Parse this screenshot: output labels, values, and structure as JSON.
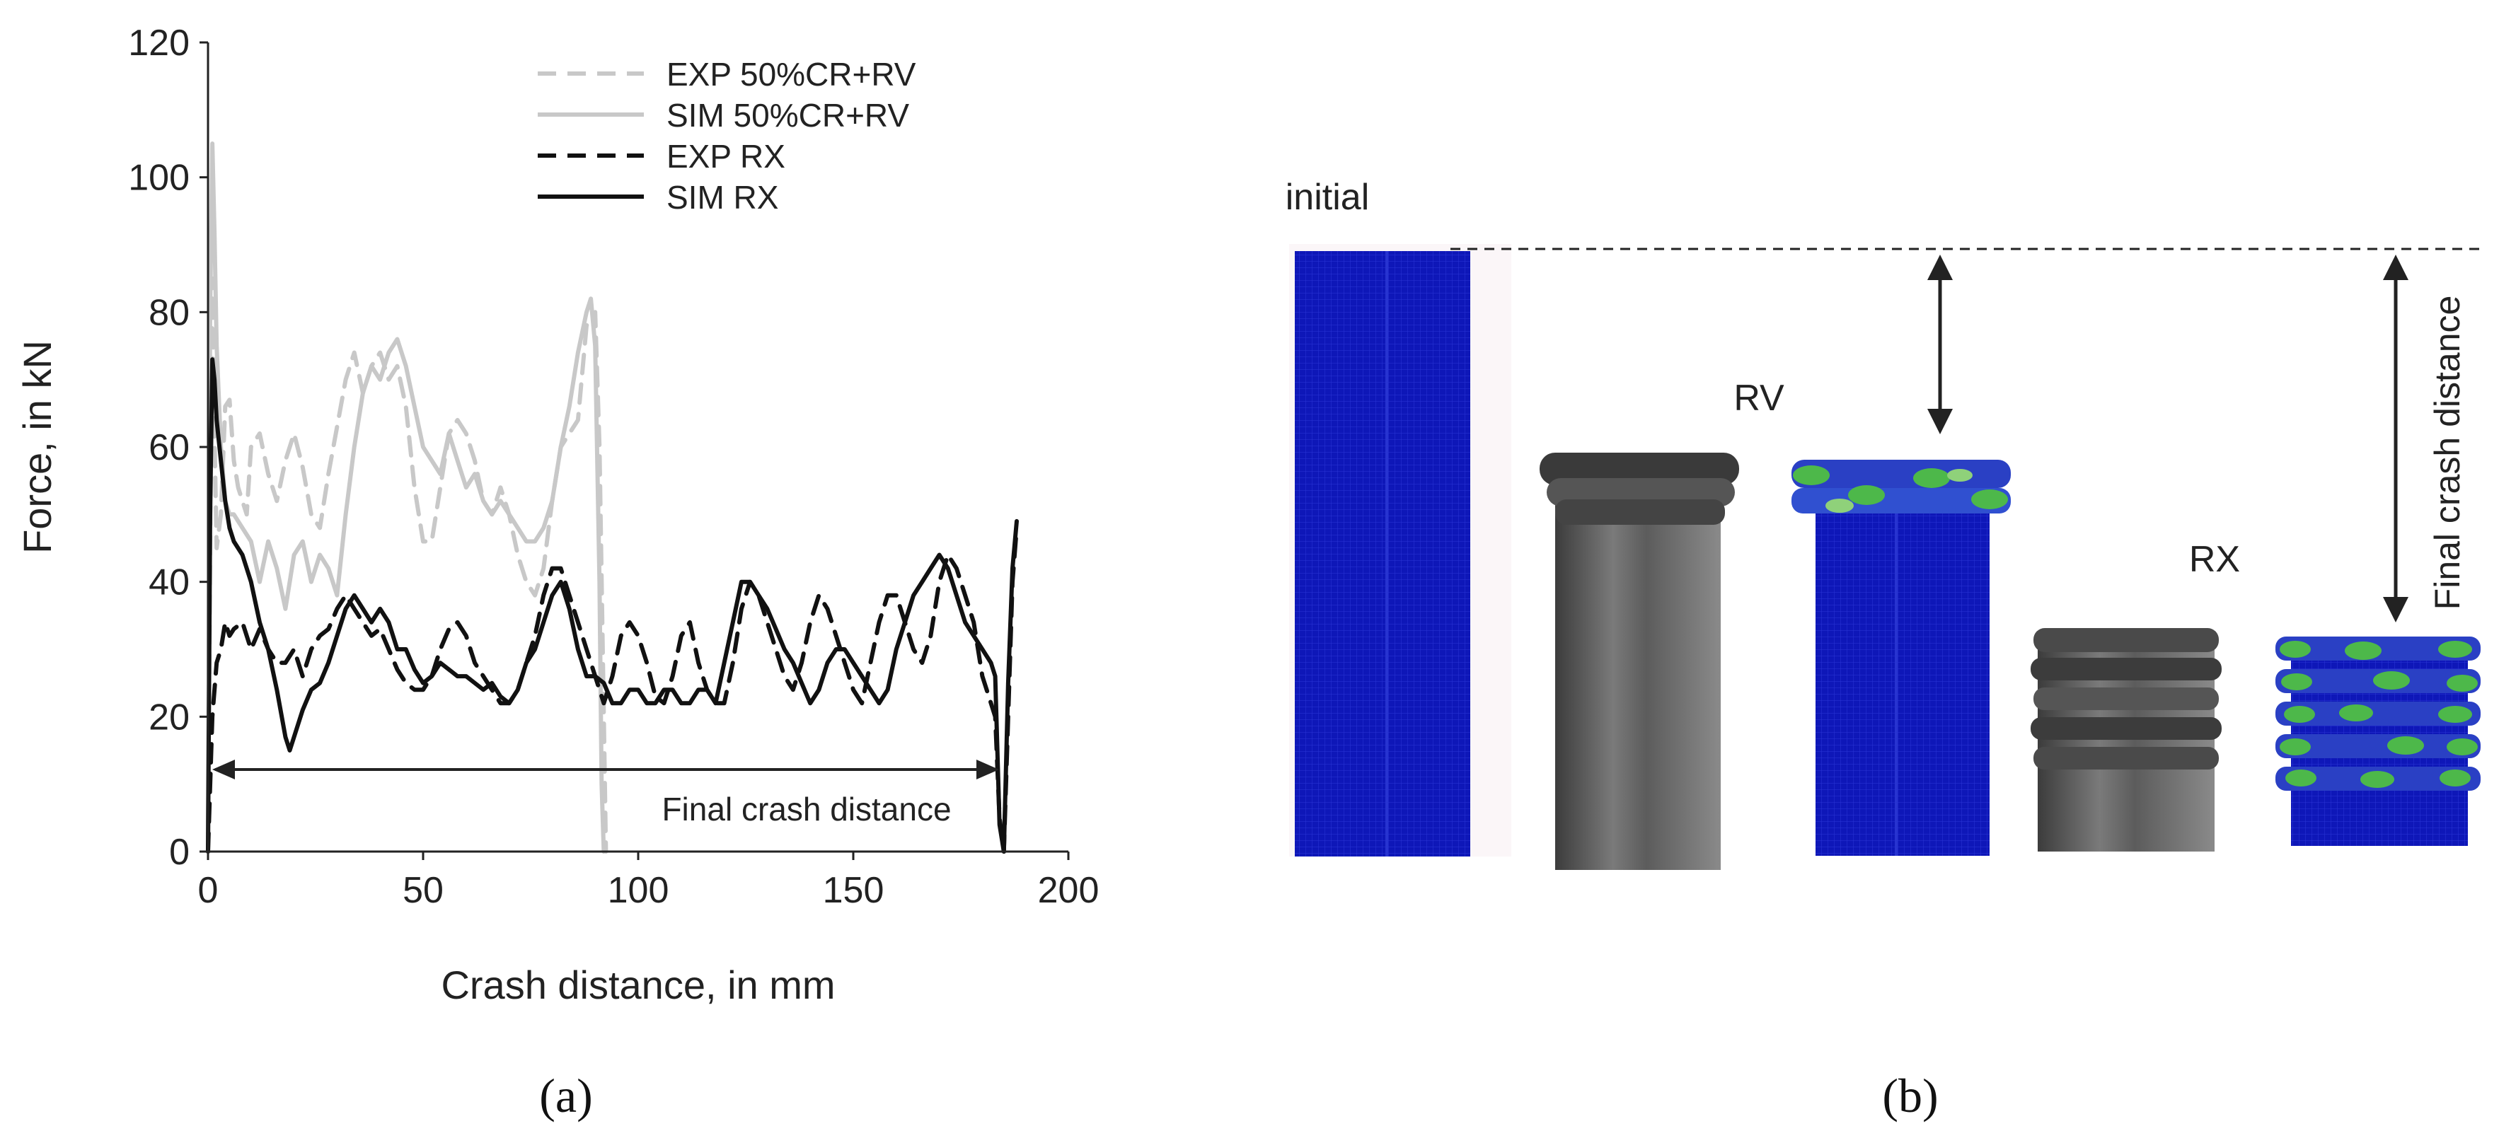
{
  "chart_data": {
    "type": "line",
    "xlabel": "Crash distance, in mm",
    "ylabel": "Force, in kN",
    "xlim": [
      0,
      200
    ],
    "ylim": [
      0,
      120
    ],
    "xticks": [
      "0",
      "50",
      "100",
      "150",
      "200"
    ],
    "yticks": [
      "0",
      "20",
      "40",
      "60",
      "80",
      "100",
      "120"
    ],
    "grid": false,
    "legend_position": "top-right",
    "annotation": "Final crash distance",
    "series": [
      {
        "name": "EXP 50%CR+RV",
        "color": "#c8c8c8",
        "dash": true,
        "points": [
          [
            0,
            0
          ],
          [
            0.5,
            45
          ],
          [
            1,
            85
          ],
          [
            1.5,
            62
          ],
          [
            2,
            45
          ],
          [
            3,
            50
          ],
          [
            4,
            66
          ],
          [
            5,
            67
          ],
          [
            6,
            58
          ],
          [
            7,
            54
          ],
          [
            8,
            52
          ],
          [
            9,
            50
          ],
          [
            10,
            60
          ],
          [
            12,
            62
          ],
          [
            14,
            56
          ],
          [
            16,
            52
          ],
          [
            18,
            58
          ],
          [
            20,
            62
          ],
          [
            22,
            57
          ],
          [
            24,
            50
          ],
          [
            26,
            48
          ],
          [
            28,
            56
          ],
          [
            30,
            63
          ],
          [
            32,
            70
          ],
          [
            34,
            74
          ],
          [
            36,
            68
          ],
          [
            38,
            72
          ],
          [
            40,
            74
          ],
          [
            42,
            70
          ],
          [
            44,
            72
          ],
          [
            46,
            66
          ],
          [
            48,
            54
          ],
          [
            50,
            46
          ],
          [
            52,
            46
          ],
          [
            54,
            54
          ],
          [
            56,
            62
          ],
          [
            58,
            64
          ],
          [
            60,
            62
          ],
          [
            62,
            58
          ],
          [
            64,
            52
          ],
          [
            66,
            50
          ],
          [
            68,
            54
          ],
          [
            70,
            50
          ],
          [
            72,
            44
          ],
          [
            74,
            40
          ],
          [
            76,
            38
          ],
          [
            78,
            42
          ],
          [
            80,
            52
          ],
          [
            82,
            60
          ],
          [
            84,
            62
          ],
          [
            86,
            64
          ],
          [
            88,
            78
          ],
          [
            90,
            80
          ],
          [
            91,
            60
          ],
          [
            92,
            20
          ],
          [
            92.5,
            0
          ]
        ]
      },
      {
        "name": "SIM 50%CR+RV",
        "color": "#c8c8c8",
        "dash": false,
        "points": [
          [
            0,
            0
          ],
          [
            0.5,
            80
          ],
          [
            1,
            105
          ],
          [
            1.5,
            92
          ],
          [
            2,
            75
          ],
          [
            3,
            60
          ],
          [
            4,
            52
          ],
          [
            5,
            50
          ],
          [
            6,
            50
          ],
          [
            8,
            48
          ],
          [
            10,
            46
          ],
          [
            12,
            40
          ],
          [
            14,
            46
          ],
          [
            16,
            42
          ],
          [
            18,
            36
          ],
          [
            20,
            44
          ],
          [
            22,
            46
          ],
          [
            24,
            40
          ],
          [
            26,
            44
          ],
          [
            28,
            42
          ],
          [
            30,
            38
          ],
          [
            32,
            50
          ],
          [
            34,
            60
          ],
          [
            36,
            68
          ],
          [
            38,
            72
          ],
          [
            40,
            70
          ],
          [
            42,
            74
          ],
          [
            44,
            76
          ],
          [
            46,
            72
          ],
          [
            48,
            66
          ],
          [
            50,
            60
          ],
          [
            52,
            58
          ],
          [
            54,
            56
          ],
          [
            56,
            62
          ],
          [
            58,
            58
          ],
          [
            60,
            54
          ],
          [
            62,
            56
          ],
          [
            64,
            52
          ],
          [
            66,
            50
          ],
          [
            68,
            52
          ],
          [
            70,
            50
          ],
          [
            72,
            48
          ],
          [
            74,
            46
          ],
          [
            76,
            46
          ],
          [
            78,
            48
          ],
          [
            80,
            52
          ],
          [
            82,
            60
          ],
          [
            84,
            66
          ],
          [
            86,
            74
          ],
          [
            88,
            80
          ],
          [
            89,
            82
          ],
          [
            90,
            75
          ],
          [
            91,
            40
          ],
          [
            91.5,
            10
          ],
          [
            92,
            0
          ]
        ]
      },
      {
        "name": "EXP RX",
        "color": "#111111",
        "dash": true,
        "points": [
          [
            0,
            0
          ],
          [
            1,
            20
          ],
          [
            2,
            28
          ],
          [
            3,
            30
          ],
          [
            4,
            34
          ],
          [
            5,
            32
          ],
          [
            6,
            33
          ],
          [
            8,
            34
          ],
          [
            10,
            30
          ],
          [
            12,
            33
          ],
          [
            14,
            30
          ],
          [
            16,
            28
          ],
          [
            18,
            28
          ],
          [
            20,
            30
          ],
          [
            22,
            26
          ],
          [
            24,
            30
          ],
          [
            26,
            32
          ],
          [
            28,
            33
          ],
          [
            30,
            36
          ],
          [
            32,
            38
          ],
          [
            34,
            36
          ],
          [
            36,
            34
          ],
          [
            38,
            32
          ],
          [
            40,
            33
          ],
          [
            42,
            30
          ],
          [
            44,
            27
          ],
          [
            46,
            25
          ],
          [
            48,
            24
          ],
          [
            50,
            24
          ],
          [
            52,
            26
          ],
          [
            54,
            30
          ],
          [
            56,
            33
          ],
          [
            58,
            34
          ],
          [
            60,
            32
          ],
          [
            62,
            28
          ],
          [
            64,
            26
          ],
          [
            66,
            24
          ],
          [
            68,
            22
          ],
          [
            70,
            22
          ],
          [
            72,
            24
          ],
          [
            74,
            28
          ],
          [
            76,
            32
          ],
          [
            78,
            38
          ],
          [
            80,
            42
          ],
          [
            82,
            42
          ],
          [
            84,
            38
          ],
          [
            86,
            34
          ],
          [
            88,
            30
          ],
          [
            90,
            26
          ],
          [
            92,
            22
          ],
          [
            94,
            26
          ],
          [
            96,
            32
          ],
          [
            98,
            34
          ],
          [
            100,
            32
          ],
          [
            102,
            28
          ],
          [
            104,
            23
          ],
          [
            106,
            22
          ],
          [
            108,
            26
          ],
          [
            110,
            32
          ],
          [
            112,
            34
          ],
          [
            114,
            28
          ],
          [
            116,
            24
          ],
          [
            118,
            22
          ],
          [
            120,
            22
          ],
          [
            122,
            28
          ],
          [
            124,
            36
          ],
          [
            126,
            40
          ],
          [
            128,
            38
          ],
          [
            130,
            34
          ],
          [
            132,
            30
          ],
          [
            134,
            26
          ],
          [
            136,
            24
          ],
          [
            138,
            28
          ],
          [
            140,
            34
          ],
          [
            142,
            38
          ],
          [
            144,
            36
          ],
          [
            146,
            32
          ],
          [
            148,
            28
          ],
          [
            150,
            24
          ],
          [
            152,
            22
          ],
          [
            154,
            28
          ],
          [
            156,
            34
          ],
          [
            158,
            38
          ],
          [
            160,
            38
          ],
          [
            162,
            34
          ],
          [
            164,
            30
          ],
          [
            166,
            28
          ],
          [
            168,
            32
          ],
          [
            170,
            40
          ],
          [
            172,
            44
          ],
          [
            174,
            42
          ],
          [
            176,
            38
          ],
          [
            178,
            34
          ],
          [
            180,
            26
          ],
          [
            182,
            22
          ],
          [
            183,
            20
          ],
          [
            184,
            5
          ],
          [
            185,
            0
          ],
          [
            186,
            20
          ],
          [
            187,
            40
          ],
          [
            188,
            48
          ]
        ]
      },
      {
        "name": "SIM RX",
        "color": "#111111",
        "dash": false,
        "points": [
          [
            0,
            0
          ],
          [
            0.5,
            50
          ],
          [
            1,
            73
          ],
          [
            1.5,
            70
          ],
          [
            2,
            64
          ],
          [
            3,
            58
          ],
          [
            4,
            52
          ],
          [
            5,
            48
          ],
          [
            6,
            46
          ],
          [
            8,
            44
          ],
          [
            10,
            40
          ],
          [
            12,
            34
          ],
          [
            14,
            30
          ],
          [
            16,
            24
          ],
          [
            18,
            17
          ],
          [
            19,
            15
          ],
          [
            20,
            17
          ],
          [
            22,
            21
          ],
          [
            24,
            24
          ],
          [
            26,
            25
          ],
          [
            28,
            28
          ],
          [
            30,
            32
          ],
          [
            32,
            36
          ],
          [
            34,
            38
          ],
          [
            36,
            36
          ],
          [
            38,
            34
          ],
          [
            40,
            36
          ],
          [
            42,
            34
          ],
          [
            44,
            30
          ],
          [
            46,
            30
          ],
          [
            48,
            27
          ],
          [
            50,
            25
          ],
          [
            52,
            26
          ],
          [
            54,
            28
          ],
          [
            56,
            27
          ],
          [
            58,
            26
          ],
          [
            60,
            26
          ],
          [
            62,
            25
          ],
          [
            64,
            24
          ],
          [
            66,
            25
          ],
          [
            68,
            23
          ],
          [
            70,
            22
          ],
          [
            72,
            24
          ],
          [
            74,
            28
          ],
          [
            76,
            30
          ],
          [
            78,
            34
          ],
          [
            80,
            38
          ],
          [
            82,
            40
          ],
          [
            84,
            36
          ],
          [
            86,
            30
          ],
          [
            88,
            26
          ],
          [
            90,
            26
          ],
          [
            92,
            25
          ],
          [
            94,
            22
          ],
          [
            96,
            22
          ],
          [
            98,
            24
          ],
          [
            100,
            24
          ],
          [
            102,
            22
          ],
          [
            104,
            22
          ],
          [
            106,
            24
          ],
          [
            108,
            24
          ],
          [
            110,
            22
          ],
          [
            112,
            22
          ],
          [
            114,
            24
          ],
          [
            116,
            24
          ],
          [
            118,
            22
          ],
          [
            120,
            28
          ],
          [
            122,
            34
          ],
          [
            124,
            40
          ],
          [
            126,
            40
          ],
          [
            128,
            38
          ],
          [
            130,
            36
          ],
          [
            132,
            33
          ],
          [
            134,
            30
          ],
          [
            136,
            28
          ],
          [
            138,
            25
          ],
          [
            140,
            22
          ],
          [
            142,
            24
          ],
          [
            144,
            28
          ],
          [
            146,
            30
          ],
          [
            148,
            30
          ],
          [
            150,
            28
          ],
          [
            152,
            26
          ],
          [
            154,
            24
          ],
          [
            156,
            22
          ],
          [
            158,
            24
          ],
          [
            160,
            30
          ],
          [
            162,
            34
          ],
          [
            164,
            38
          ],
          [
            166,
            40
          ],
          [
            168,
            42
          ],
          [
            170,
            44
          ],
          [
            172,
            42
          ],
          [
            174,
            38
          ],
          [
            176,
            34
          ],
          [
            178,
            32
          ],
          [
            180,
            30
          ],
          [
            182,
            28
          ],
          [
            183,
            26
          ],
          [
            184,
            4
          ],
          [
            185,
            0
          ],
          [
            186,
            25
          ],
          [
            187,
            42
          ],
          [
            188,
            49
          ]
        ]
      }
    ]
  },
  "panel_b": {
    "labels": {
      "initial": "initial",
      "rv": "RV",
      "rx": "RX",
      "final_crash_distance": "Final crash distance"
    },
    "colors": {
      "fem_blue": "#0e17b8",
      "fem_green": "#4db84a",
      "steel_grey": "#6e6e6e"
    }
  },
  "captions": {
    "a": "(a)",
    "b": "(b)"
  }
}
